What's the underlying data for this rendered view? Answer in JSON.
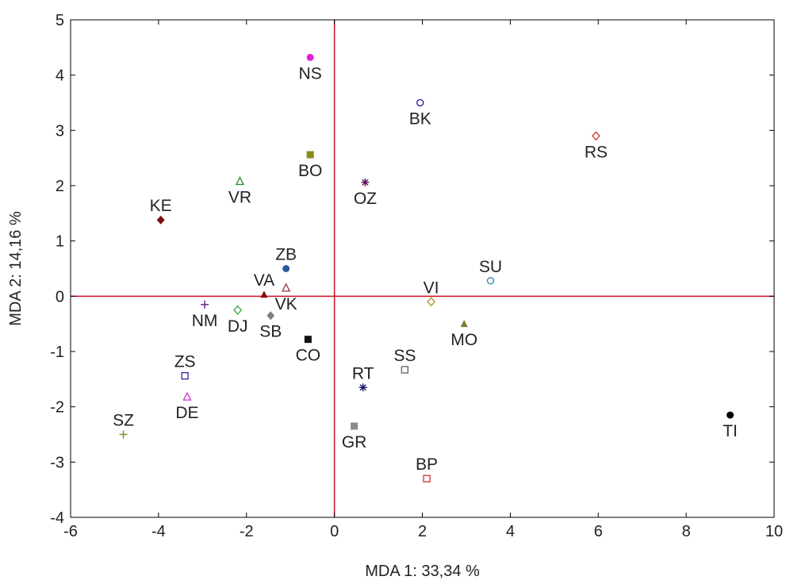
{
  "chart_data": {
    "type": "scatter",
    "xlabel": "MDA 1: 33,34 %",
    "ylabel": "MDA 2: 14,16 %",
    "xlim": [
      -6,
      10
    ],
    "ylim": [
      -4,
      5
    ],
    "xticks": [
      -6,
      -4,
      -2,
      0,
      2,
      4,
      6,
      8,
      10
    ],
    "yticks": [
      -4,
      -3,
      -2,
      -1,
      0,
      1,
      2,
      3,
      4,
      5
    ],
    "xtick_labels": [
      "-6",
      "-4",
      "-2",
      "0",
      "2",
      "4",
      "6",
      "8",
      "10"
    ],
    "ytick_labels": [
      "-4",
      "-3",
      "-2",
      "-1",
      "0",
      "1",
      "2",
      "3",
      "4",
      "5"
    ],
    "reference_lines": {
      "x": 0,
      "y": 0,
      "color": "#c8101e"
    },
    "grid": false,
    "points": [
      {
        "label": "NS",
        "x": -0.55,
        "y": 4.32,
        "marker": "circle-filled",
        "color": "#e020d8",
        "label_pos": "below"
      },
      {
        "label": "BK",
        "x": 1.95,
        "y": 3.5,
        "marker": "circle-open",
        "color": "#1a1aa0",
        "label_pos": "below"
      },
      {
        "label": "RS",
        "x": 5.95,
        "y": 2.9,
        "marker": "diamond-open",
        "color": "#d03020",
        "label_pos": "below"
      },
      {
        "label": "BO",
        "x": -0.55,
        "y": 2.56,
        "marker": "square-filled",
        "color": "#8a8a1a",
        "label_pos": "below"
      },
      {
        "label": "VR",
        "x": -2.15,
        "y": 2.08,
        "marker": "triangle-open",
        "color": "#2a8a2a",
        "label_pos": "below"
      },
      {
        "label": "OZ",
        "x": 0.7,
        "y": 2.06,
        "marker": "asterisk",
        "color": "#601060",
        "label_pos": "below"
      },
      {
        "label": "KE",
        "x": -3.95,
        "y": 1.38,
        "marker": "diamond-filled",
        "color": "#7a1010",
        "label_pos": "above"
      },
      {
        "label": "ZB",
        "x": -1.1,
        "y": 0.5,
        "marker": "circle-filled",
        "color": "#2a5a9a",
        "label_pos": "above"
      },
      {
        "label": "SU",
        "x": 3.55,
        "y": 0.28,
        "marker": "circle-open",
        "color": "#2a8aaa",
        "label_pos": "above"
      },
      {
        "label": "VA",
        "x": -1.6,
        "y": 0.03,
        "marker": "triangle-filled",
        "color": "#8a1010",
        "label_pos": "above"
      },
      {
        "label": "VK",
        "x": -1.1,
        "y": 0.15,
        "marker": "triangle-open",
        "color": "#9a3030",
        "label_pos": "below"
      },
      {
        "label": "VI",
        "x": 2.2,
        "y": -0.1,
        "marker": "diamond-open",
        "color": "#b09020",
        "label_pos": "above"
      },
      {
        "label": "NM",
        "x": -2.95,
        "y": -0.15,
        "marker": "plus",
        "color": "#6a2a8a",
        "label_pos": "below"
      },
      {
        "label": "DJ",
        "x": -2.2,
        "y": -0.25,
        "marker": "diamond-open",
        "color": "#3a9a3a",
        "label_pos": "below"
      },
      {
        "label": "SB",
        "x": -1.45,
        "y": -0.35,
        "marker": "diamond-filled",
        "color": "#808080",
        "label_pos": "below"
      },
      {
        "label": "MO",
        "x": 2.95,
        "y": -0.5,
        "marker": "triangle-filled",
        "color": "#7a7a2a",
        "label_pos": "below"
      },
      {
        "label": "CO",
        "x": -0.6,
        "y": -0.78,
        "marker": "square-filled",
        "color": "#111111",
        "label_pos": "below"
      },
      {
        "label": "SS",
        "x": 1.6,
        "y": -1.33,
        "marker": "square-open",
        "color": "#606060",
        "label_pos": "above"
      },
      {
        "label": "ZS",
        "x": -3.4,
        "y": -1.44,
        "marker": "square-open",
        "color": "#2a2a9a",
        "label_pos": "above"
      },
      {
        "label": "RT",
        "x": 0.65,
        "y": -1.65,
        "marker": "asterisk",
        "color": "#1a1a6a",
        "label_pos": "above"
      },
      {
        "label": "DE",
        "x": -3.35,
        "y": -1.82,
        "marker": "triangle-open",
        "color": "#d030d0",
        "label_pos": "below"
      },
      {
        "label": "TI",
        "x": 9.0,
        "y": -2.15,
        "marker": "circle-filled",
        "color": "#000000",
        "label_pos": "below"
      },
      {
        "label": "GR",
        "x": 0.45,
        "y": -2.35,
        "marker": "square-filled",
        "color": "#8a8a8a",
        "label_pos": "below"
      },
      {
        "label": "SZ",
        "x": -4.8,
        "y": -2.5,
        "marker": "plus",
        "color": "#8a8a2a",
        "label_pos": "above"
      },
      {
        "label": "BP",
        "x": 2.1,
        "y": -3.3,
        "marker": "square-open",
        "color": "#d03030",
        "label_pos": "above"
      }
    ]
  }
}
